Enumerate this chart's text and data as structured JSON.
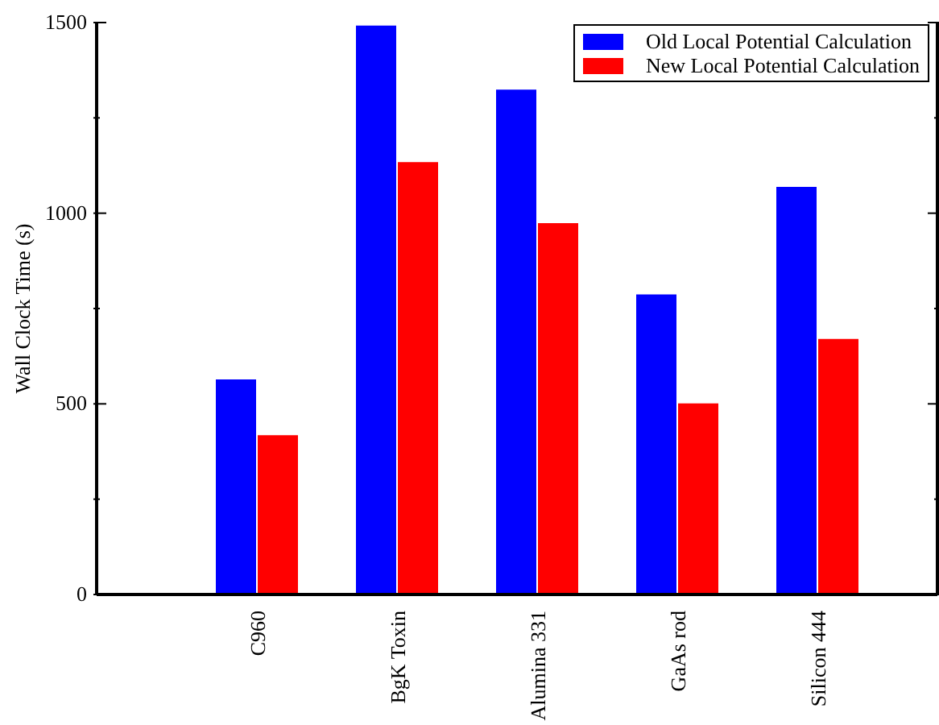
{
  "chart_data": {
    "type": "bar",
    "ylabel": "Wall Clock Time (s)",
    "categories": [
      "C960",
      "BgK Toxin",
      "Alumina 331",
      "GaAs rod",
      "Silicon 444"
    ],
    "series": [
      {
        "name": "Old Local Potential Calculation",
        "color": "#0000ff",
        "values": [
          564,
          1492,
          1324,
          787,
          1069
        ]
      },
      {
        "name": "New Local Potential Calculation",
        "color": "#ff0000",
        "values": [
          418,
          1134,
          974,
          501,
          670
        ]
      }
    ],
    "ylim": [
      0,
      1500
    ],
    "yticks": [
      0,
      {
        "value": 250,
        "label": null
      },
      500,
      {
        "value": 750,
        "label": null
      },
      1000,
      {
        "value": 1250,
        "label": null
      },
      1500
    ],
    "grid": false,
    "legend": "top right"
  }
}
